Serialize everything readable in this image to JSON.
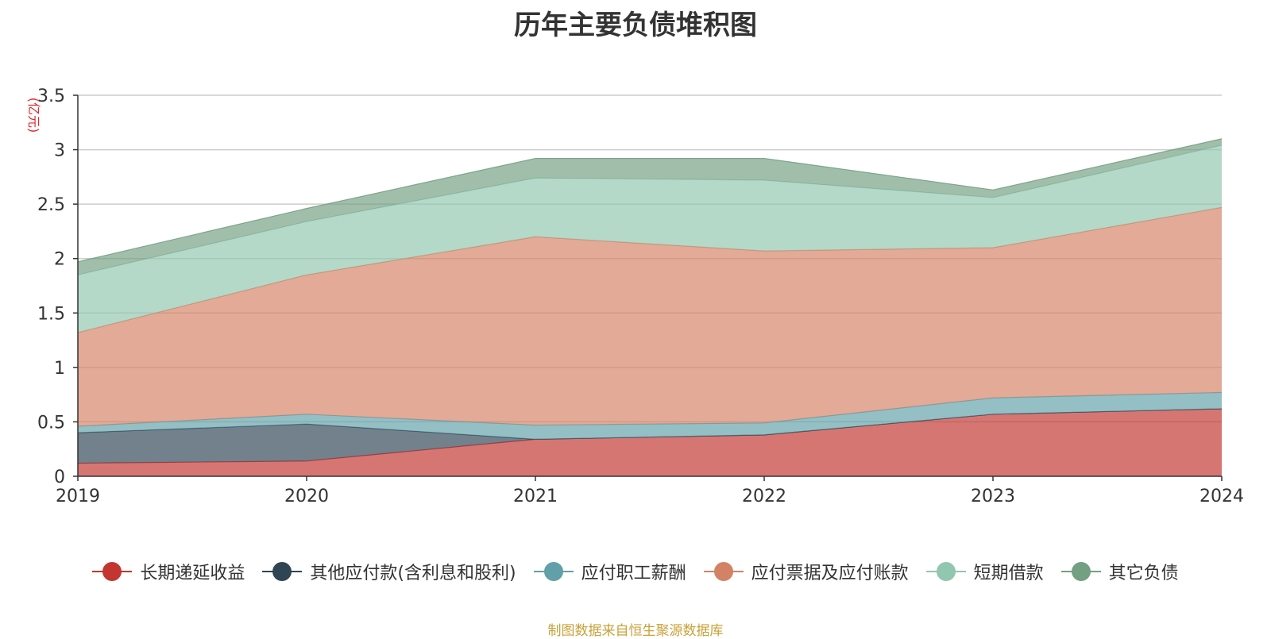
{
  "title": "历年主要负债堆积图",
  "source": "制图数据来自恒生聚源数据库",
  "chart_data": {
    "type": "area",
    "stacked": true,
    "title": "历年主要负债堆积图",
    "ylabel": "(亿元)",
    "xlabel": "",
    "x": [
      "2019",
      "2020",
      "2021",
      "2022",
      "2023",
      "2024"
    ],
    "ylim": [
      0,
      3.5
    ],
    "yticks": [
      "0",
      "0.5",
      "1",
      "1.5",
      "2",
      "2.5",
      "3",
      "3.5"
    ],
    "grid": true,
    "legend_position": "bottom",
    "series": [
      {
        "name": "长期递延收益",
        "color": "#c23531",
        "values": [
          0.12,
          0.14,
          0.34,
          0.38,
          0.57,
          0.62
        ]
      },
      {
        "name": "其他应付款(含利息和股利)",
        "color": "#2f4554",
        "values": [
          0.28,
          0.34,
          0.0,
          0.0,
          0.0,
          0.0
        ]
      },
      {
        "name": "应付职工薪酬",
        "color": "#61a0a8",
        "values": [
          0.06,
          0.09,
          0.13,
          0.11,
          0.15,
          0.15
        ]
      },
      {
        "name": "应付票据及应付账款",
        "color": "#d48265",
        "values": [
          0.86,
          1.28,
          1.73,
          1.58,
          1.38,
          1.7
        ]
      },
      {
        "name": "短期借款",
        "color": "#91c7ae",
        "values": [
          0.53,
          0.49,
          0.54,
          0.65,
          0.46,
          0.57
        ]
      },
      {
        "name": "其它负债",
        "color": "#749f83",
        "values": [
          0.12,
          0.12,
          0.18,
          0.2,
          0.07,
          0.06
        ]
      }
    ]
  }
}
